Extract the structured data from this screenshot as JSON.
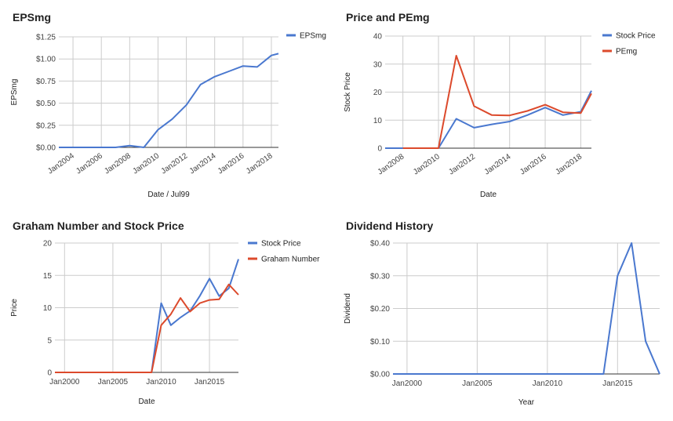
{
  "colors": {
    "blue": "#4a78cf",
    "red": "#dc4a2c",
    "grid": "#cccccc",
    "axis": "#333333",
    "border": "#9e9e9e"
  },
  "chart_data": [
    {
      "type": "line",
      "title": "EPSmg",
      "xlabel": "Date / Jul99",
      "ylabel": "EPSmg",
      "ylim": [
        0,
        1.25
      ],
      "y_ticks": [
        "$0.00",
        "$0.25",
        "$0.50",
        "$0.75",
        "$1.00",
        "$1.25"
      ],
      "x_ticks": [
        "Jan2004",
        "Jan2006",
        "Jan2008",
        "Jan2010",
        "Jan2012",
        "Jan2014",
        "Jan2016",
        "Jan2018"
      ],
      "series": [
        {
          "name": "EPSmg",
          "x": [
            2003,
            2004,
            2005,
            2006,
            2007,
            2008,
            2009,
            2010,
            2011,
            2012,
            2013,
            2014,
            2015,
            2016,
            2017,
            2018,
            2018.5
          ],
          "values": [
            0,
            0,
            0,
            0,
            0,
            0.02,
            0,
            0.2,
            0.32,
            0.48,
            0.71,
            0.8,
            0.86,
            0.92,
            0.91,
            1.04,
            1.06
          ]
        }
      ],
      "legend": "right"
    },
    {
      "type": "line",
      "title": "Price and PEmg",
      "xlabel": "Date",
      "ylabel": "Stock Price",
      "ylim": [
        0,
        40
      ],
      "y_ticks": [
        "0",
        "10",
        "20",
        "30",
        "40"
      ],
      "x_ticks": [
        "Jan2008",
        "Jan2010",
        "Jan2012",
        "Jan2014",
        "Jan2016",
        "Jan2018"
      ],
      "series": [
        {
          "name": "Stock Price",
          "x": [
            2007,
            2008,
            2009,
            2010,
            2011,
            2012,
            2013,
            2014,
            2015,
            2016,
            2017,
            2018,
            2018.6
          ],
          "values": [
            0,
            0,
            0,
            0,
            10.5,
            7.3,
            8.5,
            9.5,
            11.8,
            14.5,
            11.8,
            13,
            20.5
          ]
        },
        {
          "name": "PEmg",
          "x": [
            2008,
            2009,
            2010,
            2011,
            2012,
            2013,
            2014,
            2015,
            2016,
            2017,
            2018,
            2018.6
          ],
          "values": [
            0,
            0,
            0,
            33,
            15,
            11.8,
            11.7,
            13.3,
            15.5,
            12.8,
            12.5,
            19.5
          ]
        }
      ],
      "legend": "right"
    },
    {
      "type": "line",
      "title": "Graham Number and Stock Price",
      "xlabel": "Date",
      "ylabel": "Price",
      "ylim": [
        0,
        20
      ],
      "y_ticks": [
        "0",
        "5",
        "10",
        "15",
        "20"
      ],
      "x_ticks": [
        "Jan2000",
        "Jan2005",
        "Jan2010",
        "Jan2015"
      ],
      "series": [
        {
          "name": "Stock Price",
          "x": [
            1999,
            2000,
            2001,
            2002,
            2003,
            2004,
            2005,
            2006,
            2007,
            2008,
            2009,
            2010,
            2011,
            2012,
            2013,
            2014,
            2015,
            2016,
            2017,
            2018
          ],
          "values": [
            0,
            0,
            0,
            0,
            0,
            0,
            0,
            0,
            0,
            0,
            0,
            10.7,
            7.3,
            8.5,
            9.5,
            11.8,
            14.5,
            11.8,
            13,
            17.5
          ]
        },
        {
          "name": "Graham Number",
          "x": [
            1999,
            2000,
            2001,
            2002,
            2003,
            2004,
            2005,
            2006,
            2007,
            2008,
            2009,
            2010,
            2011,
            2012,
            2013,
            2014,
            2015,
            2016,
            2017,
            2018
          ],
          "values": [
            0,
            0,
            0,
            0,
            0,
            0,
            0,
            0,
            0,
            0,
            0,
            7.3,
            9.0,
            11.5,
            9.4,
            10.7,
            11.2,
            11.3,
            13.6,
            12.0
          ]
        }
      ],
      "legend": "right"
    },
    {
      "type": "line",
      "title": "Dividend History",
      "xlabel": "Year",
      "ylabel": "Dividend",
      "ylim": [
        0,
        0.4
      ],
      "y_ticks": [
        "$0.00",
        "$0.10",
        "$0.20",
        "$0.30",
        "$0.40"
      ],
      "x_ticks": [
        "Jan2000",
        "Jan2005",
        "Jan2010",
        "Jan2015"
      ],
      "series": [
        {
          "name": "",
          "x": [
            1999,
            2000,
            2001,
            2002,
            2003,
            2004,
            2005,
            2006,
            2007,
            2008,
            2009,
            2010,
            2011,
            2012,
            2013,
            2014,
            2015,
            2016,
            2017,
            2018
          ],
          "values": [
            0,
            0,
            0,
            0,
            0,
            0,
            0,
            0,
            0,
            0,
            0,
            0,
            0,
            0,
            0,
            0,
            0.3,
            0.4,
            0.1,
            0
          ]
        }
      ],
      "legend": "none"
    }
  ]
}
